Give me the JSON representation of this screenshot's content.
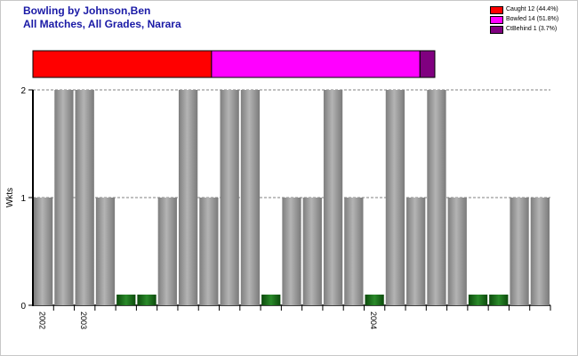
{
  "header": {
    "title": "Bowling by Johnson,Ben",
    "subtitle": "All Matches, All Grades, Narara"
  },
  "legend": [
    {
      "label": "Caught 12 (44.4%)",
      "color": "#ff0000"
    },
    {
      "label": "Bowled 14 (51.8%)",
      "color": "#ff00ff"
    },
    {
      "label": "CtBehind 1 (3.7%)",
      "color": "#800080"
    }
  ],
  "chart_data": [
    {
      "type": "bar",
      "stacked_horizontal": true,
      "segments": [
        {
          "name": "Caught",
          "value": 12,
          "percent": 44.4,
          "color": "#ff0000"
        },
        {
          "name": "Bowled",
          "value": 14,
          "percent": 51.8,
          "color": "#ff00ff"
        },
        {
          "name": "CtBehind",
          "value": 1,
          "percent": 3.7,
          "color": "#800080"
        }
      ]
    },
    {
      "type": "bar",
      "ylabel": "Wkts",
      "ylim": [
        0,
        2
      ],
      "yticks": [
        0,
        1,
        2
      ],
      "grid": true,
      "values": [
        1,
        2,
        2,
        1,
        0,
        0,
        1,
        2,
        1,
        2,
        2,
        0,
        1,
        1,
        2,
        1,
        0,
        2,
        1,
        2,
        1,
        0,
        0,
        1,
        1
      ],
      "zero_color": "#1e6e1e",
      "bar_color": "#9a9a9a",
      "year_labels": [
        {
          "index": 0,
          "label": "2002"
        },
        {
          "index": 2,
          "label": "2003"
        },
        {
          "index": 16,
          "label": "2004"
        }
      ]
    }
  ]
}
